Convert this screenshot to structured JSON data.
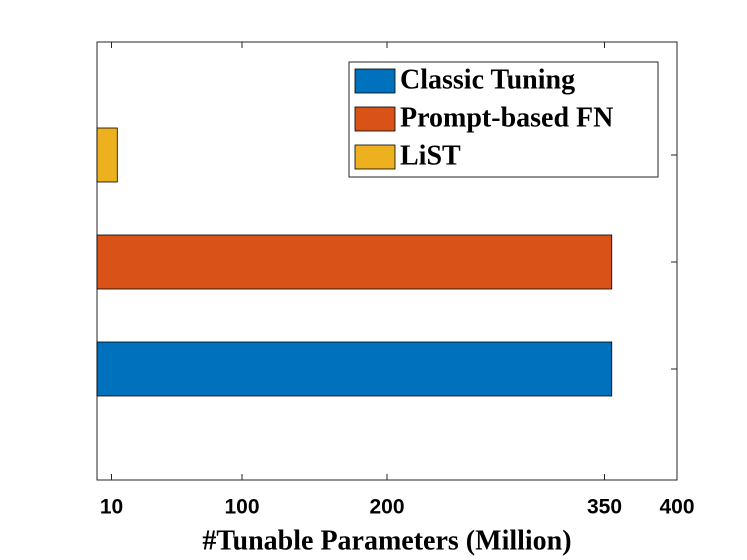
{
  "chart_data": {
    "type": "barh",
    "x_label": "#Tunable Parameters (Million)",
    "categories": [
      null,
      null,
      null
    ],
    "series": [
      {
        "name": "Classic Tuning",
        "color": "#0072bd",
        "values": [
          355,
          null,
          null
        ]
      },
      {
        "name": "Prompt-based FN",
        "color": "#d95319",
        "values": [
          null,
          355,
          null
        ]
      },
      {
        "name": "LiST",
        "color": "#edb120",
        "values": [
          null,
          null,
          14
        ]
      }
    ],
    "xlim": [
      0,
      400
    ],
    "xticks": [
      10,
      100,
      200,
      350,
      400
    ],
    "legend": "upper right"
  }
}
